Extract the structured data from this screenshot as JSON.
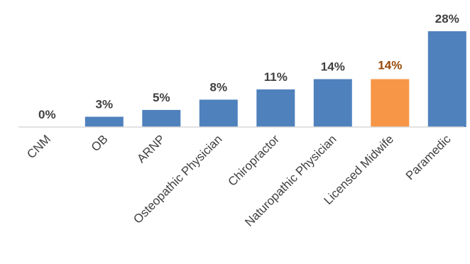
{
  "chart_data": {
    "type": "bar",
    "title": "",
    "xlabel": "",
    "ylabel": "",
    "categories": [
      "CNM",
      "OB",
      "ARNP",
      "Osteopathic Physician",
      "Chiropractor",
      "Naturopathic Physician",
      "Licensed Midwife",
      "Paramedic"
    ],
    "values": [
      0,
      3,
      5,
      8,
      11,
      14,
      14,
      28
    ],
    "value_labels": [
      "0%",
      "3%",
      "5%",
      "8%",
      "11%",
      "14%",
      "14%",
      "28%"
    ],
    "highlight_index": 6,
    "ylim": [
      0,
      28
    ],
    "grid": false,
    "legend": "none",
    "colors": {
      "bar": "#4F81BD",
      "highlight": "#F79646",
      "label": "#404040",
      "highlight_label": "#974806",
      "axis": "#D9D9D9"
    }
  }
}
